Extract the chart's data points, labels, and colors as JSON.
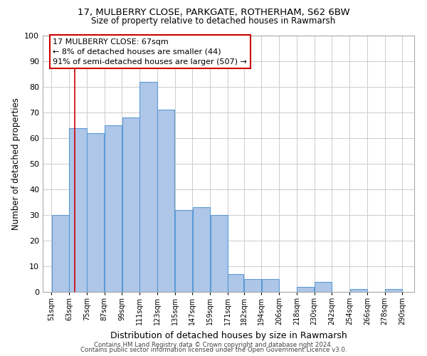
{
  "title": "17, MULBERRY CLOSE, PARKGATE, ROTHERHAM, S62 6BW",
  "subtitle": "Size of property relative to detached houses in Rawmarsh",
  "xlabel": "Distribution of detached houses by size in Rawmarsh",
  "ylabel": "Number of detached properties",
  "bar_left_edges": [
    51,
    63,
    75,
    87,
    99,
    111,
    123,
    135,
    147,
    159,
    171,
    182,
    194,
    206,
    218,
    230,
    242,
    254,
    266,
    278
  ],
  "bar_widths": [
    12,
    12,
    12,
    12,
    12,
    12,
    12,
    12,
    12,
    12,
    11,
    12,
    12,
    12,
    12,
    12,
    12,
    12,
    12,
    12
  ],
  "bar_heights": [
    30,
    64,
    62,
    65,
    68,
    82,
    71,
    32,
    33,
    30,
    7,
    5,
    5,
    0,
    2,
    4,
    0,
    1,
    0,
    1
  ],
  "tick_labels": [
    "51sqm",
    "63sqm",
    "75sqm",
    "87sqm",
    "99sqm",
    "111sqm",
    "123sqm",
    "135sqm",
    "147sqm",
    "159sqm",
    "171sqm",
    "182sqm",
    "194sqm",
    "206sqm",
    "218sqm",
    "230sqm",
    "242sqm",
    "254sqm",
    "266sqm",
    "278sqm",
    "290sqm"
  ],
  "bar_color": "#aec6e8",
  "bar_edge_color": "#5b9bd5",
  "property_line_x": 67,
  "annotation_line1": "17 MULBERRY CLOSE: 67sqm",
  "annotation_line2": "← 8% of detached houses are smaller (44)",
  "annotation_line3": "91% of semi-detached houses are larger (507) →",
  "red_line_color": "#cc0000",
  "annotation_border_color": "#cc0000",
  "ylim": [
    0,
    100
  ],
  "yticks": [
    0,
    10,
    20,
    30,
    40,
    50,
    60,
    70,
    80,
    90,
    100
  ],
  "footer_line1": "Contains HM Land Registry data © Crown copyright and database right 2024.",
  "footer_line2": "Contains public sector information licensed under the Open Government Licence v3.0.",
  "background_color": "#ffffff",
  "grid_color": "#cccccc"
}
